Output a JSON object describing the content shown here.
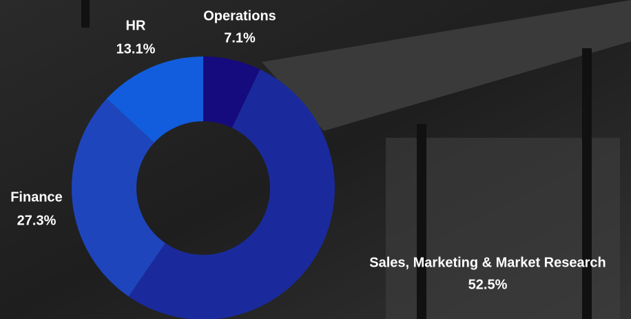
{
  "chart_data": {
    "type": "pie",
    "donut": true,
    "categories": [
      "Operations",
      "Sales, Marketing & Market Research",
      "Finance",
      "HR"
    ],
    "values": [
      7.1,
      52.5,
      27.3,
      13.1
    ],
    "value_labels": [
      "7.1%",
      "52.5%",
      "27.3%",
      "13.1%"
    ],
    "colors": [
      "#150a7e",
      "#1a2a9c",
      "#1f45bd",
      "#115ddd"
    ]
  }
}
